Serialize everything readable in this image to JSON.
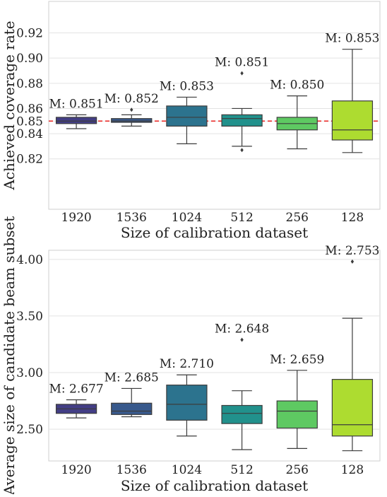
{
  "chart_data": [
    {
      "type": "box",
      "xlabel": "Size of calibration dataset",
      "ylabel": "Achieved coverage rate",
      "categories": [
        "1920",
        "1536",
        "1024",
        "512",
        "256",
        "128"
      ],
      "ylim": [
        0.78,
        0.945
      ],
      "yticks": [
        "0.82",
        "0.84",
        "0.85",
        "0.86",
        "0.88",
        "0.90",
        "0.92"
      ],
      "reference_line": 0.85,
      "grid": true,
      "boxes": [
        {
          "category": "1920",
          "whisker_low": 0.844,
          "q1": 0.848,
          "median": 0.85,
          "q3": 0.853,
          "whisker_high": 0.855,
          "outliers": [],
          "mean_label": "M: 0.851",
          "color": "#433e85"
        },
        {
          "category": "1536",
          "whisker_low": 0.846,
          "q1": 0.849,
          "median": 0.85,
          "q3": 0.852,
          "whisker_high": 0.855,
          "outliers": [
            0.859
          ],
          "mean_label": "M: 0.852",
          "color": "#38598c"
        },
        {
          "category": "1024",
          "whisker_low": 0.832,
          "q1": 0.846,
          "median": 0.853,
          "q3": 0.862,
          "whisker_high": 0.869,
          "outliers": [],
          "mean_label": "M: 0.853",
          "color": "#2c738e"
        },
        {
          "category": "512",
          "whisker_low": 0.83,
          "q1": 0.846,
          "median": 0.852,
          "q3": 0.855,
          "whisker_high": 0.86,
          "outliers": [
            0.888,
            0.827
          ],
          "mean_label": "M: 0.851",
          "color": "#21918c"
        },
        {
          "category": "256",
          "whisker_low": 0.828,
          "q1": 0.843,
          "median": 0.848,
          "q3": 0.853,
          "whisker_high": 0.87,
          "outliers": [],
          "mean_label": "M: 0.850",
          "color": "#5ec962"
        },
        {
          "category": "128",
          "whisker_low": 0.825,
          "q1": 0.835,
          "median": 0.843,
          "q3": 0.866,
          "whisker_high": 0.907,
          "outliers": [],
          "mean_label": "M: 0.853",
          "color": "#addc30"
        }
      ]
    },
    {
      "type": "box",
      "xlabel": "Size of calibration dataset",
      "ylabel": "Average size of candidate beam subset",
      "categories": [
        "1920",
        "1536",
        "1024",
        "512",
        "256",
        "128"
      ],
      "ylim": [
        2.22,
        4.08
      ],
      "yticks": [
        "2.50",
        "3.00",
        "3.50",
        "4.00"
      ],
      "grid": true,
      "boxes": [
        {
          "category": "1920",
          "whisker_low": 2.6,
          "q1": 2.64,
          "median": 2.68,
          "q3": 2.72,
          "whisker_high": 2.76,
          "outliers": [],
          "mean_label": "M: 2.677",
          "color": "#433e85"
        },
        {
          "category": "1536",
          "whisker_low": 2.61,
          "q1": 2.63,
          "median": 2.66,
          "q3": 2.73,
          "whisker_high": 2.86,
          "outliers": [],
          "mean_label": "M: 2.685",
          "color": "#38598c"
        },
        {
          "category": "1024",
          "whisker_low": 2.44,
          "q1": 2.58,
          "median": 2.72,
          "q3": 2.89,
          "whisker_high": 2.98,
          "outliers": [],
          "mean_label": "M: 2.710",
          "color": "#2c738e"
        },
        {
          "category": "512",
          "whisker_low": 2.32,
          "q1": 2.55,
          "median": 2.64,
          "q3": 2.71,
          "whisker_high": 2.84,
          "outliers": [
            3.29
          ],
          "mean_label": "M: 2.648",
          "color": "#21918c"
        },
        {
          "category": "256",
          "whisker_low": 2.33,
          "q1": 2.51,
          "median": 2.66,
          "q3": 2.75,
          "whisker_high": 3.02,
          "outliers": [],
          "mean_label": "M: 2.659",
          "color": "#5ec962"
        },
        {
          "category": "128",
          "whisker_low": 2.31,
          "q1": 2.44,
          "median": 2.54,
          "q3": 2.94,
          "whisker_high": 3.48,
          "outliers": [
            3.98
          ],
          "mean_label": "M: 2.753",
          "color": "#addc30"
        }
      ]
    }
  ]
}
